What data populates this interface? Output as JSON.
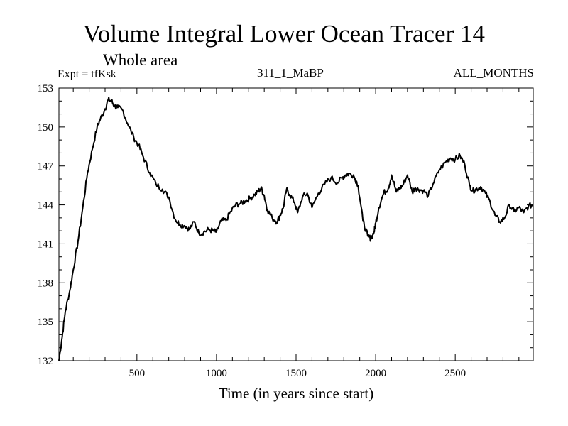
{
  "chart_data": {
    "type": "line",
    "title": "Volume Integral Lower Ocean Tracer 14",
    "subtitle": "Whole area",
    "experiment_label": "Expt = tfKsk",
    "run_label": "311_1_MaBP",
    "period_label": "ALL_MONTHS",
    "xlabel": "Time (in years since start)",
    "ylabel": "",
    "xlim": [
      10,
      2990
    ],
    "ylim": [
      132,
      153
    ],
    "xticks": [
      500,
      1000,
      1500,
      2000,
      2500
    ],
    "yticks": [
      132,
      135,
      138,
      141,
      144,
      147,
      150,
      153
    ],
    "grid": false,
    "series": [
      {
        "name": "Volume Integral Lower Ocean Tracer 14",
        "color": "#000000",
        "x": [
          10,
          30,
          50,
          80,
          100,
          130,
          160,
          190,
          220,
          250,
          270,
          300,
          320,
          340,
          360,
          380,
          410,
          440,
          480,
          510,
          540,
          580,
          620,
          660,
          700,
          740,
          770,
          800,
          830,
          860,
          890,
          920,
          950,
          980,
          1000,
          1030,
          1060,
          1090,
          1120,
          1150,
          1180,
          1210,
          1240,
          1260,
          1280,
          1300,
          1320,
          1350,
          1380,
          1400,
          1420,
          1440,
          1460,
          1490,
          1510,
          1540,
          1570,
          1600,
          1640,
          1680,
          1720,
          1760,
          1790,
          1810,
          1830,
          1860,
          1890,
          1920,
          1950,
          1970,
          1990,
          2000,
          2020,
          2050,
          2080,
          2100,
          2130,
          2150,
          2170,
          2200,
          2230,
          2250,
          2270,
          2300,
          2330,
          2360,
          2400,
          2440,
          2470,
          2500,
          2530,
          2560,
          2590,
          2610,
          2630,
          2660,
          2690,
          2720,
          2750,
          2780,
          2810,
          2840,
          2870,
          2900,
          2930,
          2960,
          2990
        ],
        "values": [
          132.0,
          133.8,
          135.8,
          137.5,
          139.0,
          141.2,
          143.8,
          146.5,
          148.3,
          150.0,
          150.6,
          151.4,
          152.1,
          152.0,
          151.6,
          151.5,
          151.3,
          150.3,
          149.2,
          148.6,
          147.7,
          146.5,
          145.6,
          145.2,
          144.6,
          142.9,
          142.5,
          142.4,
          142.1,
          142.7,
          141.8,
          141.9,
          142.1,
          142.0,
          141.9,
          142.8,
          142.8,
          143.5,
          144.0,
          144.1,
          144.3,
          144.5,
          144.8,
          145.0,
          145.3,
          144.7,
          143.6,
          143.0,
          142.7,
          143.2,
          143.8,
          145.2,
          144.8,
          144.2,
          143.4,
          144.6,
          144.9,
          143.8,
          144.9,
          145.6,
          146.1,
          145.7,
          146.1,
          146.3,
          146.4,
          146.3,
          145.5,
          142.8,
          141.6,
          141.4,
          141.9,
          142.6,
          143.8,
          144.9,
          145.3,
          146.3,
          145.0,
          145.3,
          145.5,
          146.3,
          145.0,
          145.3,
          145.2,
          145.1,
          144.7,
          145.6,
          146.7,
          147.3,
          147.6,
          147.5,
          147.8,
          147.1,
          145.5,
          145.1,
          145.2,
          145.4,
          144.9,
          144.2,
          143.2,
          142.7,
          143.0,
          144.0,
          143.5,
          143.8,
          143.4,
          143.9,
          144.0
        ]
      }
    ]
  }
}
